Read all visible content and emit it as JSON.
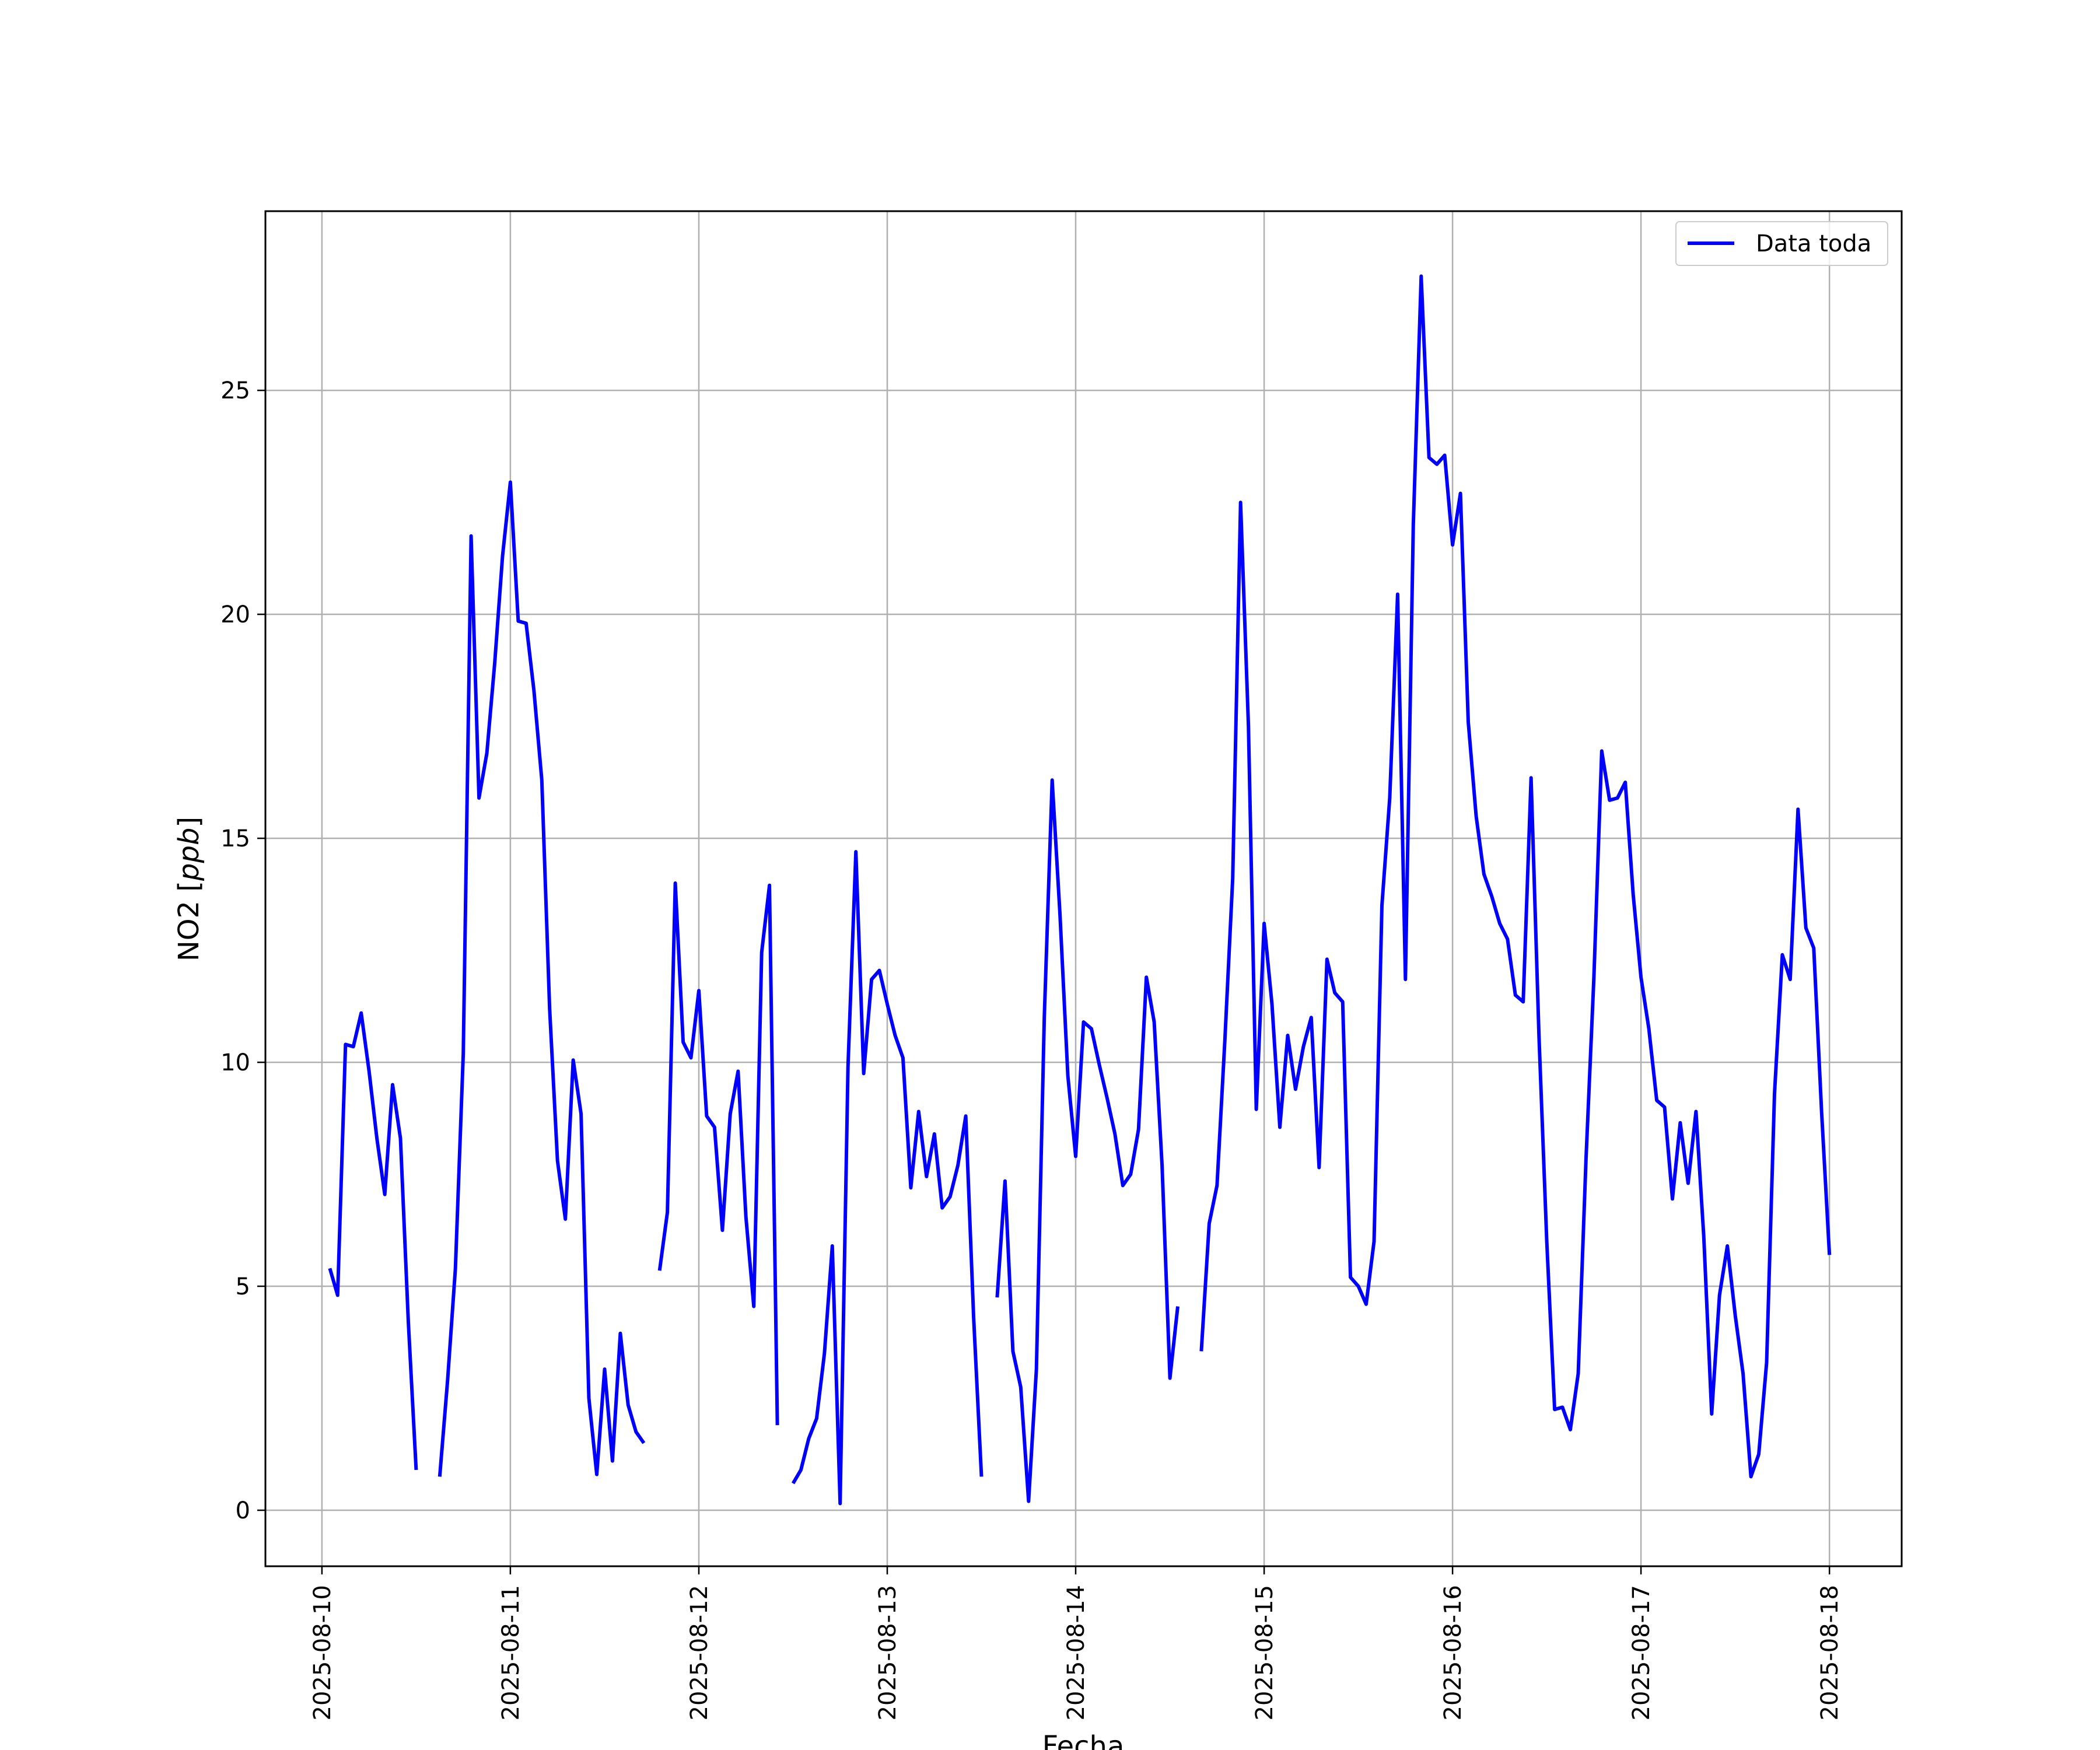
{
  "chart_data": {
    "type": "line",
    "xlabel": "Fecha",
    "ylabel": "NO2 [ppb]",
    "ylabel_main": "NO2 [",
    "ylabel_unit": "ppb",
    "ylabel_close": "]",
    "xlim": [
      "2025-08-09T16:48",
      "2025-08-18T09:12"
    ],
    "ylim": [
      -1.25,
      29
    ],
    "grid": true,
    "legend_position": "top-right",
    "x_ticks": [
      "2025-08-10",
      "2025-08-11",
      "2025-08-12",
      "2025-08-13",
      "2025-08-14",
      "2025-08-15",
      "2025-08-16",
      "2025-08-17",
      "2025-08-18"
    ],
    "y_ticks": [
      0,
      5,
      10,
      15,
      20,
      25
    ],
    "series": [
      {
        "name": "Data toda",
        "color": "#0000ff",
        "points": [
          [
            "2025-08-10T01:00",
            5.4
          ],
          [
            "2025-08-10T02:00",
            4.8
          ],
          [
            "2025-08-10T03:00",
            10.4
          ],
          [
            "2025-08-10T04:00",
            10.35
          ],
          [
            "2025-08-10T05:00",
            11.1
          ],
          [
            "2025-08-10T06:00",
            9.8
          ],
          [
            "2025-08-10T07:00",
            8.3
          ],
          [
            "2025-08-10T08:00",
            7.05
          ],
          [
            "2025-08-10T09:00",
            9.5
          ],
          [
            "2025-08-10T10:00",
            8.3
          ],
          [
            "2025-08-10T11:00",
            4.2
          ],
          [
            "2025-08-10T12:00",
            0.9
          ],
          [
            "2025-08-10T13:00",
            null
          ],
          [
            "2025-08-10T14:00",
            null
          ],
          [
            "2025-08-10T15:00",
            0.75
          ],
          [
            "2025-08-10T16:00",
            2.9
          ],
          [
            "2025-08-10T17:00",
            5.4
          ],
          [
            "2025-08-10T18:00",
            10.2
          ],
          [
            "2025-08-10T19:00",
            21.75
          ],
          [
            "2025-08-10T20:00",
            15.9
          ],
          [
            "2025-08-10T21:00",
            16.9
          ],
          [
            "2025-08-10T22:00",
            18.9
          ],
          [
            "2025-08-10T23:00",
            21.3
          ],
          [
            "2025-08-11T00:00",
            22.95
          ],
          [
            "2025-08-11T01:00",
            19.85
          ],
          [
            "2025-08-11T02:00",
            19.8
          ],
          [
            "2025-08-11T03:00",
            18.3
          ],
          [
            "2025-08-11T04:00",
            16.3
          ],
          [
            "2025-08-11T05:00",
            11.2
          ],
          [
            "2025-08-11T06:00",
            7.8
          ],
          [
            "2025-08-11T07:00",
            6.5
          ],
          [
            "2025-08-11T08:00",
            10.05
          ],
          [
            "2025-08-11T09:00",
            8.85
          ],
          [
            "2025-08-11T10:00",
            2.5
          ],
          [
            "2025-08-11T11:00",
            0.8
          ],
          [
            "2025-08-11T12:00",
            3.15
          ],
          [
            "2025-08-11T13:00",
            1.1
          ],
          [
            "2025-08-11T14:00",
            3.95
          ],
          [
            "2025-08-11T15:00",
            2.35
          ],
          [
            "2025-08-11T16:00",
            1.75
          ],
          [
            "2025-08-11T17:00",
            1.5
          ],
          [
            "2025-08-11T18:00",
            null
          ],
          [
            "2025-08-11T19:00",
            5.35
          ],
          [
            "2025-08-11T20:00",
            6.65
          ],
          [
            "2025-08-11T21:00",
            14.0
          ],
          [
            "2025-08-11T22:00",
            10.45
          ],
          [
            "2025-08-11T23:00",
            10.1
          ],
          [
            "2025-08-12T00:00",
            11.6
          ],
          [
            "2025-08-12T01:00",
            8.8
          ],
          [
            "2025-08-12T02:00",
            8.55
          ],
          [
            "2025-08-12T03:00",
            6.25
          ],
          [
            "2025-08-12T04:00",
            8.85
          ],
          [
            "2025-08-12T05:00",
            9.8
          ],
          [
            "2025-08-12T06:00",
            6.55
          ],
          [
            "2025-08-12T07:00",
            4.55
          ],
          [
            "2025-08-12T08:00",
            12.45
          ],
          [
            "2025-08-12T09:00",
            13.95
          ],
          [
            "2025-08-12T10:00",
            1.9
          ],
          [
            "2025-08-12T11:00",
            null
          ],
          [
            "2025-08-12T12:00",
            0.6
          ],
          [
            "2025-08-12T13:00",
            0.9
          ],
          [
            "2025-08-12T14:00",
            1.6
          ],
          [
            "2025-08-12T15:00",
            2.05
          ],
          [
            "2025-08-12T16:00",
            3.5
          ],
          [
            "2025-08-12T17:00",
            5.9
          ],
          [
            "2025-08-12T18:00",
            0.15
          ],
          [
            "2025-08-12T19:00",
            9.9
          ],
          [
            "2025-08-12T20:00",
            14.7
          ],
          [
            "2025-08-12T21:00",
            9.75
          ],
          [
            "2025-08-12T22:00",
            11.85
          ],
          [
            "2025-08-12T23:00",
            12.05
          ],
          [
            "2025-08-13T00:00",
            11.3
          ],
          [
            "2025-08-13T01:00",
            10.6
          ],
          [
            "2025-08-13T02:00",
            10.1
          ],
          [
            "2025-08-13T03:00",
            7.2
          ],
          [
            "2025-08-13T04:00",
            8.9
          ],
          [
            "2025-08-13T05:00",
            7.45
          ],
          [
            "2025-08-13T06:00",
            8.4
          ],
          [
            "2025-08-13T07:00",
            6.75
          ],
          [
            "2025-08-13T08:00",
            7.0
          ],
          [
            "2025-08-13T09:00",
            7.7
          ],
          [
            "2025-08-13T10:00",
            8.8
          ],
          [
            "2025-08-13T11:00",
            4.3
          ],
          [
            "2025-08-13T12:00",
            0.75
          ],
          [
            "2025-08-13T13:00",
            null
          ],
          [
            "2025-08-13T14:00",
            4.75
          ],
          [
            "2025-08-13T15:00",
            7.35
          ],
          [
            "2025-08-13T16:00",
            3.55
          ],
          [
            "2025-08-13T17:00",
            2.75
          ],
          [
            "2025-08-13T18:00",
            0.2
          ],
          [
            "2025-08-13T19:00",
            3.15
          ],
          [
            "2025-08-13T20:00",
            11.0
          ],
          [
            "2025-08-13T21:00",
            16.3
          ],
          [
            "2025-08-13T22:00",
            13.3
          ],
          [
            "2025-08-13T23:00",
            9.7
          ],
          [
            "2025-08-14T00:00",
            7.9
          ],
          [
            "2025-08-14T01:00",
            10.9
          ],
          [
            "2025-08-14T02:00",
            10.75
          ],
          [
            "2025-08-14T03:00",
            9.95
          ],
          [
            "2025-08-14T04:00",
            9.2
          ],
          [
            "2025-08-14T05:00",
            8.4
          ],
          [
            "2025-08-14T06:00",
            7.25
          ],
          [
            "2025-08-14T07:00",
            7.5
          ],
          [
            "2025-08-14T08:00",
            8.5
          ],
          [
            "2025-08-14T09:00",
            11.9
          ],
          [
            "2025-08-14T10:00",
            10.9
          ],
          [
            "2025-08-14T11:00",
            7.7
          ],
          [
            "2025-08-14T12:00",
            2.95
          ],
          [
            "2025-08-14T13:00",
            4.55
          ],
          [
            "2025-08-14T14:00",
            null
          ],
          [
            "2025-08-14T15:00",
            null
          ],
          [
            "2025-08-14T16:00",
            3.55
          ],
          [
            "2025-08-14T17:00",
            6.4
          ],
          [
            "2025-08-14T18:00",
            7.25
          ],
          [
            "2025-08-14T19:00",
            10.5
          ],
          [
            "2025-08-14T20:00",
            14.1
          ],
          [
            "2025-08-14T21:00",
            22.5
          ],
          [
            "2025-08-14T22:00",
            17.5
          ],
          [
            "2025-08-14T23:00",
            8.95
          ],
          [
            "2025-08-15T00:00",
            13.1
          ],
          [
            "2025-08-15T01:00",
            11.3
          ],
          [
            "2025-08-15T02:00",
            8.55
          ],
          [
            "2025-08-15T03:00",
            10.6
          ],
          [
            "2025-08-15T04:00",
            9.4
          ],
          [
            "2025-08-15T05:00",
            10.35
          ],
          [
            "2025-08-15T06:00",
            11.0
          ],
          [
            "2025-08-15T07:00",
            7.65
          ],
          [
            "2025-08-15T08:00",
            12.3
          ],
          [
            "2025-08-15T09:00",
            11.55
          ],
          [
            "2025-08-15T10:00",
            11.35
          ],
          [
            "2025-08-15T11:00",
            5.2
          ],
          [
            "2025-08-15T12:00",
            5.0
          ],
          [
            "2025-08-15T13:00",
            4.6
          ],
          [
            "2025-08-15T14:00",
            6.0
          ],
          [
            "2025-08-15T15:00",
            13.5
          ],
          [
            "2025-08-15T16:00",
            15.9
          ],
          [
            "2025-08-15T17:00",
            20.45
          ],
          [
            "2025-08-15T18:00",
            11.85
          ],
          [
            "2025-08-15T19:00",
            22.0
          ],
          [
            "2025-08-15T20:00",
            27.55
          ],
          [
            "2025-08-15T21:00",
            23.5
          ],
          [
            "2025-08-15T22:00",
            23.35
          ],
          [
            "2025-08-15T23:00",
            23.55
          ],
          [
            "2025-08-16T00:00",
            21.55
          ],
          [
            "2025-08-16T01:00",
            22.7
          ],
          [
            "2025-08-16T02:00",
            17.6
          ],
          [
            "2025-08-16T03:00",
            15.5
          ],
          [
            "2025-08-16T04:00",
            14.2
          ],
          [
            "2025-08-16T05:00",
            13.7
          ],
          [
            "2025-08-16T06:00",
            13.1
          ],
          [
            "2025-08-16T07:00",
            12.75
          ],
          [
            "2025-08-16T08:00",
            11.5
          ],
          [
            "2025-08-16T09:00",
            11.35
          ],
          [
            "2025-08-16T10:00",
            16.35
          ],
          [
            "2025-08-16T11:00",
            10.6
          ],
          [
            "2025-08-16T12:00",
            6.0
          ],
          [
            "2025-08-16T13:00",
            2.25
          ],
          [
            "2025-08-16T14:00",
            2.3
          ],
          [
            "2025-08-16T15:00",
            1.8
          ],
          [
            "2025-08-16T16:00",
            3.05
          ],
          [
            "2025-08-16T17:00",
            7.85
          ],
          [
            "2025-08-16T18:00",
            11.9
          ],
          [
            "2025-08-16T19:00",
            16.95
          ],
          [
            "2025-08-16T20:00",
            15.85
          ],
          [
            "2025-08-16T21:00",
            15.9
          ],
          [
            "2025-08-16T22:00",
            16.25
          ],
          [
            "2025-08-16T23:00",
            13.75
          ],
          [
            "2025-08-17T00:00",
            11.9
          ],
          [
            "2025-08-17T01:00",
            10.75
          ],
          [
            "2025-08-17T02:00",
            9.15
          ],
          [
            "2025-08-17T03:00",
            9.0
          ],
          [
            "2025-08-17T04:00",
            6.95
          ],
          [
            "2025-08-17T05:00",
            8.65
          ],
          [
            "2025-08-17T06:00",
            7.3
          ],
          [
            "2025-08-17T07:00",
            8.9
          ],
          [
            "2025-08-17T08:00",
            6.1
          ],
          [
            "2025-08-17T09:00",
            2.15
          ],
          [
            "2025-08-17T10:00",
            4.8
          ],
          [
            "2025-08-17T11:00",
            5.9
          ],
          [
            "2025-08-17T12:00",
            4.35
          ],
          [
            "2025-08-17T13:00",
            3.05
          ],
          [
            "2025-08-17T14:00",
            0.75
          ],
          [
            "2025-08-17T15:00",
            1.25
          ],
          [
            "2025-08-17T16:00",
            3.3
          ],
          [
            "2025-08-17T17:00",
            9.3
          ],
          [
            "2025-08-17T18:00",
            12.4
          ],
          [
            "2025-08-17T19:00",
            11.85
          ],
          [
            "2025-08-17T20:00",
            15.65
          ],
          [
            "2025-08-17T21:00",
            13.0
          ],
          [
            "2025-08-17T22:00",
            12.55
          ],
          [
            "2025-08-17T23:00",
            8.9
          ],
          [
            "2025-08-18T00:00",
            5.7
          ]
        ]
      }
    ]
  }
}
